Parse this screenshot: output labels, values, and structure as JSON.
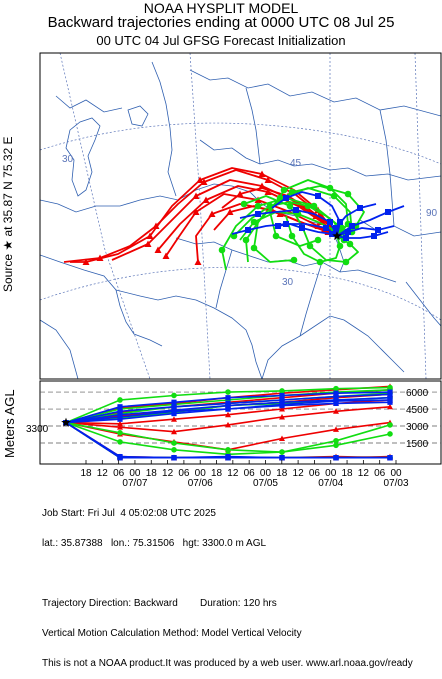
{
  "header": {
    "line1": "NOAA HYSPLIT MODEL",
    "line2": "Backward trajectories ending at 0000 UTC 08 Jul 25",
    "line3": "00 UTC 04 Jul    GFSG  Forecast Initialization"
  },
  "side_label": "Source ★ at   35.87 N   75.32 E",
  "height_axis_label": "Meters AGL",
  "source_height_label": "3300",
  "map": {
    "lat_labels": [
      "30",
      "30",
      "45"
    ],
    "lon_labels": [
      "90"
    ]
  },
  "colors": {
    "red": "#ee0000",
    "green": "#11dd11",
    "blue": "#0022ee",
    "map_line": "#2f5fb0",
    "grid": "#5a74b8"
  },
  "chart_data": {
    "type": "line",
    "source": {
      "lat": 35.87,
      "lon": 75.32,
      "height_m": 3300
    },
    "duration_hrs": 120,
    "time_axis": {
      "hour_labels": [
        "18",
        "12",
        "06",
        "00",
        "18",
        "12",
        "06",
        "00",
        "18",
        "12",
        "06",
        "00",
        "18",
        "12",
        "06",
        "00",
        "18",
        "12",
        "06",
        "00"
      ],
      "date_labels": [
        "07/07",
        "07/06",
        "07/05",
        "07/04",
        "07/03"
      ]
    },
    "height_axis": {
      "ticks": [
        6000,
        4500,
        3000,
        1500
      ],
      "range": [
        0,
        6800
      ]
    },
    "series": [
      {
        "color": "red",
        "heights": [
          3300,
          4600,
          5000,
          5500,
          5900,
          6200,
          6500
        ]
      },
      {
        "color": "red",
        "heights": [
          3300,
          4200,
          4700,
          5100,
          5500,
          5900,
          6200
        ]
      },
      {
        "color": "red",
        "heights": [
          3300,
          3900,
          4300,
          4800,
          5100,
          5500,
          5800
        ]
      },
      {
        "color": "red",
        "heights": [
          3300,
          3200,
          3600,
          4000,
          4500,
          5000,
          5300
        ]
      },
      {
        "color": "red",
        "heights": [
          3300,
          2900,
          2500,
          3100,
          3800,
          4300,
          4700
        ]
      },
      {
        "color": "red",
        "heights": [
          3300,
          2300,
          1600,
          900,
          1900,
          2700,
          3300
        ]
      },
      {
        "color": "red",
        "heights": [
          3300,
          300,
          200,
          200,
          200,
          200,
          300
        ]
      },
      {
        "color": "red",
        "heights": [
          3300,
          200,
          200,
          200,
          200,
          300,
          200
        ]
      },
      {
        "color": "green",
        "heights": [
          3300,
          5300,
          5700,
          6000,
          6100,
          6300,
          6400
        ]
      },
      {
        "color": "green",
        "heights": [
          3300,
          4500,
          4900,
          5300,
          5700,
          6000,
          6200
        ]
      },
      {
        "color": "green",
        "heights": [
          3300,
          4100,
          4700,
          5000,
          5300,
          5600,
          5900
        ]
      },
      {
        "color": "green",
        "heights": [
          3300,
          3700,
          4200,
          4800,
          5000,
          5300,
          5500
        ]
      },
      {
        "color": "green",
        "heights": [
          3300,
          2400,
          1500,
          900,
          700,
          1700,
          3100
        ]
      },
      {
        "color": "green",
        "heights": [
          3300,
          1600,
          900,
          500,
          700,
          1300,
          2300
        ]
      },
      {
        "color": "green",
        "heights": [
          3300,
          200,
          200,
          200,
          200,
          200,
          200
        ]
      },
      {
        "color": "green",
        "heights": [
          3300,
          200,
          200,
          200,
          200,
          200,
          200
        ]
      },
      {
        "color": "blue",
        "heights": [
          3300,
          4700,
          5100,
          5500,
          5700,
          5900,
          6000
        ]
      },
      {
        "color": "blue",
        "heights": [
          3300,
          4300,
          4700,
          5000,
          5300,
          5600,
          5800
        ]
      },
      {
        "color": "blue",
        "heights": [
          3300,
          4000,
          4400,
          4800,
          5100,
          5300,
          5500
        ]
      },
      {
        "color": "blue",
        "heights": [
          3300,
          3600,
          4100,
          4500,
          4900,
          5200,
          5300
        ]
      },
      {
        "color": "blue",
        "heights": [
          3300,
          3800,
          4300,
          4500,
          4800,
          5000,
          5100
        ]
      },
      {
        "color": "blue",
        "heights": [
          3300,
          200,
          200,
          200,
          200,
          200,
          200
        ]
      },
      {
        "color": "blue",
        "heights": [
          3300,
          300,
          200,
          200,
          200,
          200,
          200
        ]
      },
      {
        "color": "blue",
        "heights": [
          3300,
          200,
          200,
          300,
          200,
          200,
          200
        ]
      }
    ]
  },
  "info": {
    "line1": "Job Start: Fri Jul  4 05:02:08 UTC 2025",
    "line2": "lat.: 35.87388   lon.: 75.31506   hgt: 3300.0 m AGL",
    "line3": "",
    "line4": "Trajectory Direction: Backward        Duration: 120 hrs",
    "line5": "Vertical Motion Calculation Method: Model Vertical Velocity",
    "line6": "This is not a NOAA product.It was produced by a web user. www.arl.noaa.gov/ready"
  }
}
